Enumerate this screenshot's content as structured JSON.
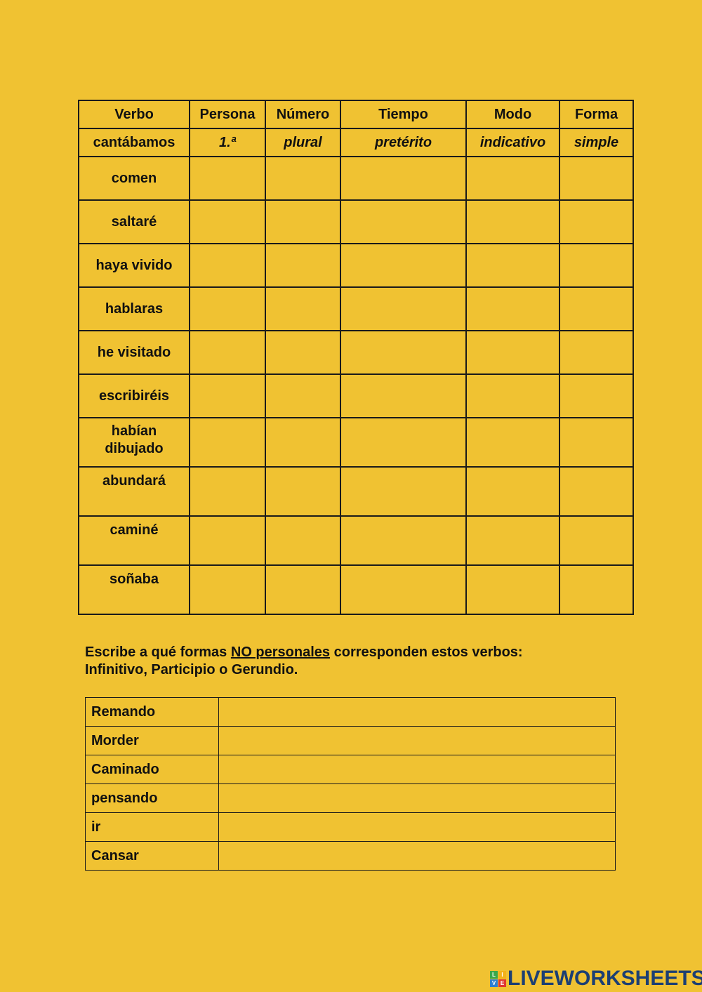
{
  "table1": {
    "headers": [
      "Verbo",
      "Persona",
      "Número",
      "Tiempo",
      "Modo",
      "Forma"
    ],
    "example": [
      "cantábamos",
      "1.ª",
      "plural",
      "pretérito",
      "indicativo",
      "simple"
    ],
    "verbs": [
      "comen",
      "saltaré",
      "haya vivido",
      "hablaras",
      "he visitado",
      "escribiréis",
      "habían dibujado",
      "abundará",
      "caminé",
      "soñaba"
    ]
  },
  "instructions": {
    "pre": "Escribe a qué formas ",
    "underlined": "NO personales",
    "post": " corresponden estos verbos:",
    "line2": "Infinitivo, Participio o Gerundio."
  },
  "table2": {
    "verbs": [
      "Remando",
      "Morder",
      "Caminado",
      "pensando",
      "ir",
      "Cansar"
    ]
  },
  "logo": {
    "text": "LIVEWORKSHEETS",
    "letters": [
      "L",
      "I",
      "V",
      "E"
    ],
    "colors": [
      "#3aa84a",
      "#f2b21a",
      "#2c7fd0",
      "#e0372f"
    ]
  }
}
